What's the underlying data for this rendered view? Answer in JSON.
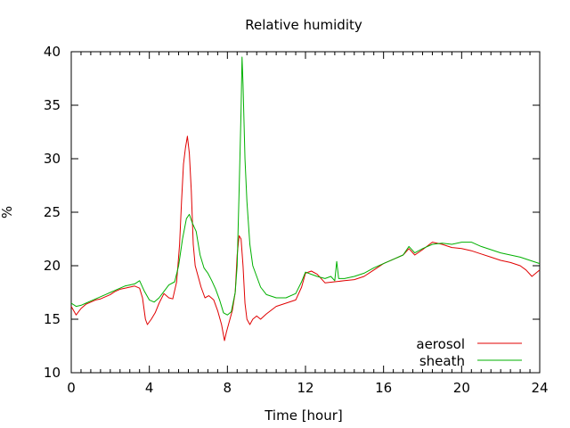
{
  "chart_data": {
    "type": "line",
    "title": "Relative humidity",
    "xlabel": "Time [hour]",
    "ylabel": "%",
    "xlim": [
      0,
      24
    ],
    "ylim": [
      10,
      40
    ],
    "x_ticks": [
      0,
      4,
      8,
      12,
      16,
      20,
      24
    ],
    "y_ticks": [
      10,
      15,
      20,
      25,
      30,
      35,
      40
    ],
    "grid": false,
    "legend_position": "bottom-right",
    "series": [
      {
        "name": "aerosol",
        "color": "#e00000",
        "points": [
          [
            0,
            16.2
          ],
          [
            0.25,
            15.4
          ],
          [
            0.5,
            16.0
          ],
          [
            0.75,
            16.4
          ],
          [
            1,
            16.6
          ],
          [
            1.25,
            16.8
          ],
          [
            1.5,
            16.9
          ],
          [
            1.75,
            17.1
          ],
          [
            2,
            17.3
          ],
          [
            2.25,
            17.6
          ],
          [
            2.5,
            17.8
          ],
          [
            2.75,
            17.9
          ],
          [
            3,
            18.0
          ],
          [
            3.25,
            18.1
          ],
          [
            3.5,
            17.9
          ],
          [
            3.65,
            17.0
          ],
          [
            3.8,
            15.0
          ],
          [
            3.9,
            14.5
          ],
          [
            4.1,
            15.0
          ],
          [
            4.3,
            15.6
          ],
          [
            4.5,
            16.5
          ],
          [
            4.75,
            17.4
          ],
          [
            5,
            17.0
          ],
          [
            5.2,
            16.9
          ],
          [
            5.4,
            18.5
          ],
          [
            5.55,
            22.0
          ],
          [
            5.65,
            26.0
          ],
          [
            5.75,
            29.5
          ],
          [
            5.85,
            31.0
          ],
          [
            5.95,
            32.1
          ],
          [
            6.05,
            30.5
          ],
          [
            6.15,
            27.0
          ],
          [
            6.25,
            22.0
          ],
          [
            6.35,
            20.0
          ],
          [
            6.5,
            19.0
          ],
          [
            6.65,
            18.0
          ],
          [
            6.85,
            17.0
          ],
          [
            7.05,
            17.2
          ],
          [
            7.3,
            16.8
          ],
          [
            7.5,
            15.8
          ],
          [
            7.7,
            14.5
          ],
          [
            7.85,
            13.0
          ],
          [
            7.95,
            13.8
          ],
          [
            8.1,
            14.8
          ],
          [
            8.25,
            15.8
          ],
          [
            8.4,
            17.5
          ],
          [
            8.5,
            21.0
          ],
          [
            8.6,
            22.8
          ],
          [
            8.7,
            22.5
          ],
          [
            8.8,
            20.0
          ],
          [
            8.9,
            16.5
          ],
          [
            9.0,
            15.0
          ],
          [
            9.15,
            14.5
          ],
          [
            9.3,
            15.0
          ],
          [
            9.5,
            15.3
          ],
          [
            9.7,
            15.0
          ],
          [
            10,
            15.5
          ],
          [
            10.5,
            16.2
          ],
          [
            11,
            16.5
          ],
          [
            11.5,
            16.8
          ],
          [
            11.8,
            18.0
          ],
          [
            12,
            19.3
          ],
          [
            12.3,
            19.5
          ],
          [
            12.6,
            19.2
          ],
          [
            13,
            18.4
          ],
          [
            13.5,
            18.5
          ],
          [
            14,
            18.6
          ],
          [
            14.5,
            18.7
          ],
          [
            15,
            19.0
          ],
          [
            15.5,
            19.6
          ],
          [
            16,
            20.2
          ],
          [
            16.5,
            20.6
          ],
          [
            17,
            21.0
          ],
          [
            17.3,
            21.6
          ],
          [
            17.6,
            21.0
          ],
          [
            18,
            21.5
          ],
          [
            18.5,
            22.2
          ],
          [
            19,
            22.0
          ],
          [
            19.5,
            21.7
          ],
          [
            20,
            21.6
          ],
          [
            20.5,
            21.4
          ],
          [
            21,
            21.1
          ],
          [
            21.5,
            20.8
          ],
          [
            22,
            20.5
          ],
          [
            22.5,
            20.3
          ],
          [
            23,
            20.0
          ],
          [
            23.3,
            19.6
          ],
          [
            23.6,
            19.0
          ],
          [
            24,
            19.6
          ]
        ]
      },
      {
        "name": "sheath",
        "color": "#00b000",
        "points": [
          [
            0,
            16.5
          ],
          [
            0.25,
            16.2
          ],
          [
            0.5,
            16.3
          ],
          [
            0.75,
            16.5
          ],
          [
            1,
            16.7
          ],
          [
            1.25,
            16.9
          ],
          [
            1.5,
            17.1
          ],
          [
            1.75,
            17.3
          ],
          [
            2,
            17.5
          ],
          [
            2.25,
            17.7
          ],
          [
            2.5,
            17.9
          ],
          [
            2.75,
            18.1
          ],
          [
            3,
            18.2
          ],
          [
            3.25,
            18.3
          ],
          [
            3.5,
            18.6
          ],
          [
            3.75,
            17.6
          ],
          [
            4,
            16.8
          ],
          [
            4.25,
            16.6
          ],
          [
            4.5,
            17.0
          ],
          [
            4.75,
            17.6
          ],
          [
            5,
            18.2
          ],
          [
            5.3,
            18.5
          ],
          [
            5.5,
            20.0
          ],
          [
            5.7,
            22.5
          ],
          [
            5.9,
            24.4
          ],
          [
            6.05,
            24.8
          ],
          [
            6.2,
            24.0
          ],
          [
            6.4,
            23.2
          ],
          [
            6.6,
            21.0
          ],
          [
            6.8,
            19.8
          ],
          [
            7.0,
            19.3
          ],
          [
            7.2,
            18.6
          ],
          [
            7.4,
            17.8
          ],
          [
            7.6,
            16.8
          ],
          [
            7.8,
            15.6
          ],
          [
            8.0,
            15.4
          ],
          [
            8.2,
            15.7
          ],
          [
            8.4,
            17.5
          ],
          [
            8.5,
            20.0
          ],
          [
            8.6,
            27.0
          ],
          [
            8.7,
            34.5
          ],
          [
            8.75,
            39.5
          ],
          [
            8.8,
            37.0
          ],
          [
            8.9,
            30.0
          ],
          [
            9.0,
            26.0
          ],
          [
            9.15,
            22.0
          ],
          [
            9.3,
            20.0
          ],
          [
            9.5,
            19.0
          ],
          [
            9.7,
            18.0
          ],
          [
            10,
            17.3
          ],
          [
            10.5,
            17.0
          ],
          [
            11,
            17.0
          ],
          [
            11.5,
            17.4
          ],
          [
            11.8,
            18.5
          ],
          [
            12,
            19.4
          ],
          [
            12.3,
            19.2
          ],
          [
            12.6,
            19.0
          ],
          [
            13,
            18.8
          ],
          [
            13.3,
            19.0
          ],
          [
            13.5,
            18.6
          ],
          [
            13.6,
            20.4
          ],
          [
            13.7,
            18.8
          ],
          [
            14,
            18.8
          ],
          [
            14.5,
            19.0
          ],
          [
            15,
            19.3
          ],
          [
            15.5,
            19.8
          ],
          [
            16,
            20.2
          ],
          [
            16.5,
            20.6
          ],
          [
            17,
            21.0
          ],
          [
            17.3,
            21.8
          ],
          [
            17.6,
            21.2
          ],
          [
            18,
            21.6
          ],
          [
            18.5,
            22.0
          ],
          [
            19,
            22.1
          ],
          [
            19.5,
            22.0
          ],
          [
            20,
            22.2
          ],
          [
            20.5,
            22.2
          ],
          [
            21,
            21.8
          ],
          [
            21.5,
            21.5
          ],
          [
            22,
            21.2
          ],
          [
            22.5,
            21.0
          ],
          [
            23,
            20.8
          ],
          [
            23.5,
            20.5
          ],
          [
            24,
            20.2
          ]
        ]
      }
    ]
  }
}
